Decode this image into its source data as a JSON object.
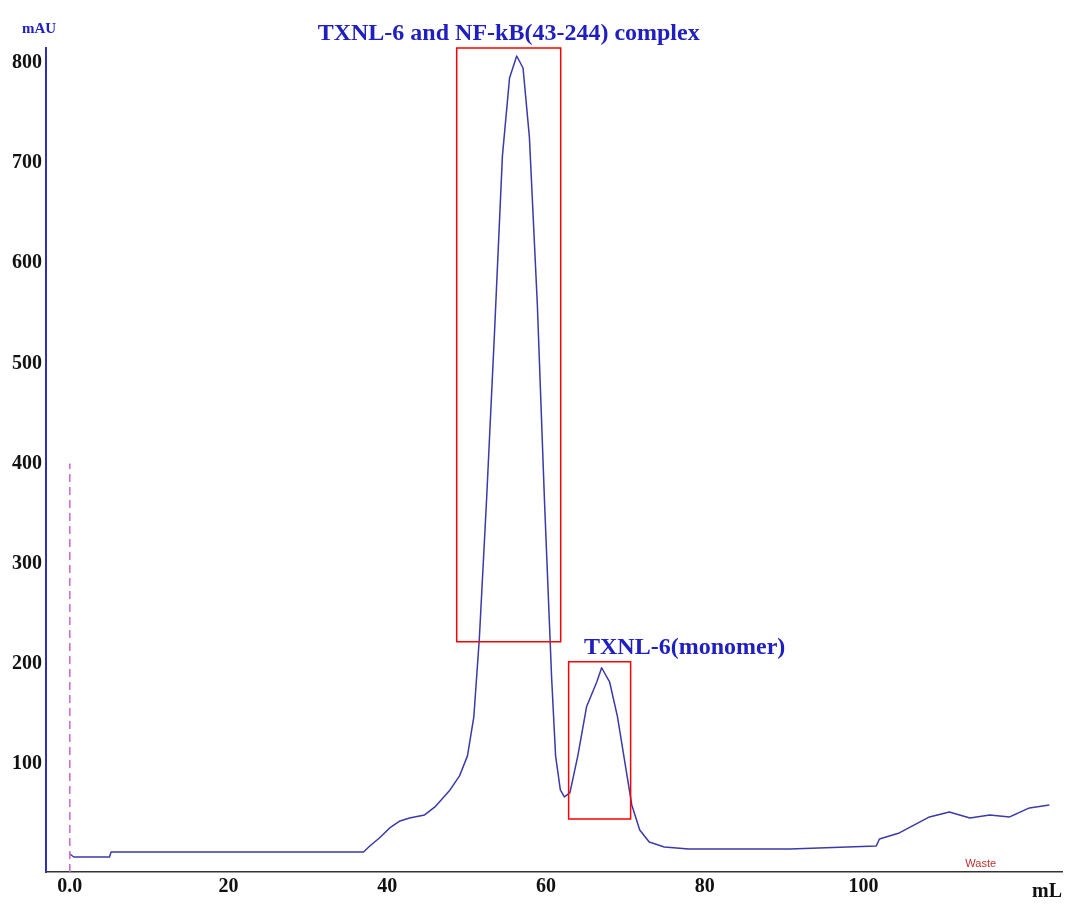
{
  "chart_data": {
    "type": "line",
    "xlabel": "mL",
    "ylabel": "mAU",
    "x": [
      0,
      0.5,
      5,
      5.2,
      37,
      37.8,
      39,
      40.3,
      41.6,
      42.8,
      44.7,
      46,
      47.9,
      49.1,
      50.1,
      50.9,
      51.6,
      52.5,
      53.5,
      54.5,
      55.4,
      56.3,
      57.1,
      57.9,
      58.9,
      59.8,
      60.7,
      61.2,
      61.8,
      62.3,
      63,
      64,
      65.1,
      66.4,
      67,
      68,
      69,
      70,
      70.8,
      71.8,
      73,
      74.9,
      78,
      90.7,
      101.6,
      102,
      104.5,
      108.3,
      110.8,
      113.4,
      115.9,
      118.4,
      120.9,
      123.4
    ],
    "series": [
      {
        "color": "#3a3aa8",
        "values": [
          10,
          7,
          7,
          12,
          12,
          18,
          26,
          36,
          43,
          46,
          49,
          57,
          74,
          88,
          108,
          147,
          226,
          363,
          530,
          707,
          785,
          807,
          795,
          726,
          559,
          363,
          186,
          108,
          74,
          67,
          71,
          108,
          157,
          182,
          196,
          182,
          147,
          98,
          59,
          34,
          22,
          17,
          15,
          15,
          18,
          25,
          31,
          47,
          52,
          46,
          49,
          47,
          56,
          59
        ]
      }
    ],
    "xlim": [
      -3,
      125
    ],
    "ylim": [
      -8,
      815
    ],
    "xticks": [
      {
        "value": 0,
        "label": "0.0"
      },
      20,
      40,
      60,
      80,
      100
    ],
    "yticks": [
      100,
      200,
      300,
      400,
      500,
      600,
      700,
      800
    ],
    "grid": false,
    "legend": false,
    "marker": "none",
    "line_style": "solid",
    "ref_lines": [
      {
        "axis": "x",
        "value": 0,
        "color": "#cc66cc",
        "line_style": "dashed"
      }
    ],
    "annotations": [
      {
        "text": "TXNL-6 and NF-kB(43-244) complex",
        "x": 56.3,
        "y": 807
      },
      {
        "text": "TXNL-6(monomer)",
        "x": 67,
        "y": 196
      },
      "Waste"
    ]
  }
}
